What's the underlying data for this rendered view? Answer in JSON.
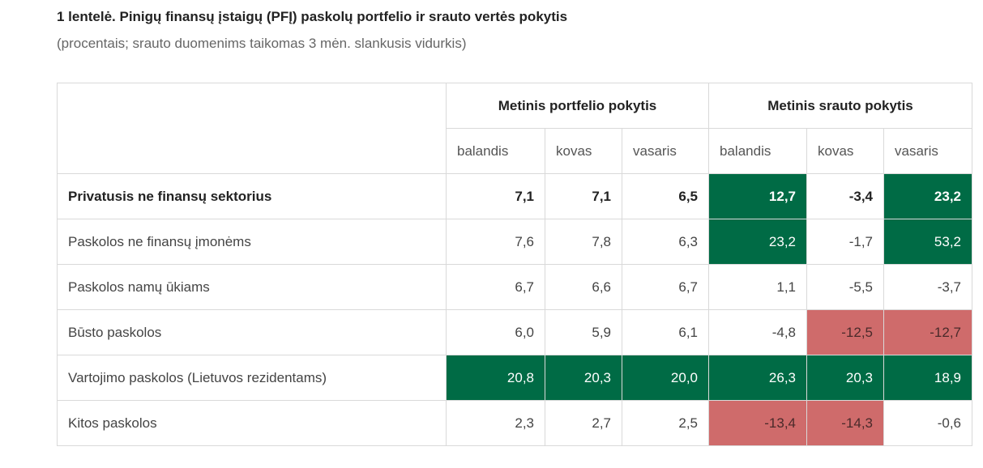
{
  "title": "1 lentelė. Pinigų finansų įstaigų (PFĮ) paskolų portfelio ir srauto vertės pokytis",
  "subtitle": "(procentais; srauto duomenims taikomas 3 mėn. slankusis vidurkis)",
  "colors": {
    "positive": "#006b45",
    "negative": "#cf6b6b"
  },
  "chart_data": {
    "type": "table",
    "title": "1 lentelė. Pinigų finansų įstaigų (PFĮ) paskolų portfelio ir srauto vertės pokytis",
    "groups": [
      "Metinis portfelio pokytis",
      "Metinis srauto pokytis"
    ],
    "months": [
      "balandis",
      "kovas",
      "vasaris",
      "balandis",
      "kovas",
      "vasaris"
    ],
    "rows": [
      {
        "label": "Privatusis ne finansų sektorius",
        "values": [
          "7,1",
          "7,1",
          "6,5",
          "12,7",
          "-3,4",
          "23,2"
        ],
        "highlight": [
          "",
          "",
          "",
          "positive",
          "",
          "positive"
        ]
      },
      {
        "label": "Paskolos ne finansų įmonėms",
        "values": [
          "7,6",
          "7,8",
          "6,3",
          "23,2",
          "-1,7",
          "53,2"
        ],
        "highlight": [
          "",
          "",
          "",
          "positive",
          "",
          "positive"
        ]
      },
      {
        "label": "Paskolos namų ūkiams",
        "values": [
          "6,7",
          "6,6",
          "6,7",
          "1,1",
          "-5,5",
          "-3,7"
        ],
        "highlight": [
          "",
          "",
          "",
          "",
          "",
          ""
        ]
      },
      {
        "label": "Būsto paskolos",
        "values": [
          "6,0",
          "5,9",
          "6,1",
          "-4,8",
          "-12,5",
          "-12,7"
        ],
        "highlight": [
          "",
          "",
          "",
          "",
          "negative",
          "negative"
        ]
      },
      {
        "label": "Vartojimo paskolos (Lietuvos rezidentams)",
        "values": [
          "20,8",
          "20,3",
          "20,0",
          "26,3",
          "20,3",
          "18,9"
        ],
        "highlight": [
          "positive",
          "positive",
          "positive",
          "positive",
          "positive",
          "positive"
        ]
      },
      {
        "label": "Kitos paskolos",
        "values": [
          "2,3",
          "2,7",
          "2,5",
          "-13,4",
          "-14,3",
          "-0,6"
        ],
        "highlight": [
          "",
          "",
          "",
          "negative",
          "negative",
          ""
        ]
      }
    ]
  }
}
